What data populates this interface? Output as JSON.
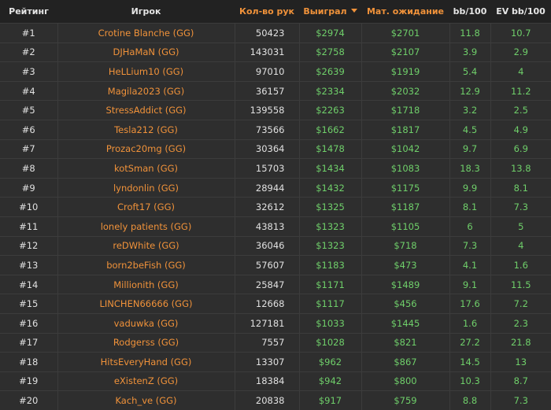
{
  "headers": {
    "rank": "Рейтинг",
    "player": "Игрок",
    "hands": "Кол-во рук",
    "won": "Выиграл",
    "ev": "Мат. ожидание",
    "bb100": "bb/100",
    "evbb100": "EV bb/100"
  },
  "sort": {
    "column": "won",
    "direction": "desc"
  },
  "colors": {
    "accent": "#f0923a",
    "positive": "#6fcf6a",
    "background": "#2e2e2e",
    "header": "#222222"
  },
  "rows": [
    {
      "rank": "#1",
      "player": "Crotine Blanche (GG)",
      "hands": "50423",
      "won": "$2974",
      "ev": "$2701",
      "bb": "11.8",
      "evbb": "10.7"
    },
    {
      "rank": "#2",
      "player": "DJHaMaN (GG)",
      "hands": "143031",
      "won": "$2758",
      "ev": "$2107",
      "bb": "3.9",
      "evbb": "2.9"
    },
    {
      "rank": "#3",
      "player": "HeLLium10 (GG)",
      "hands": "97010",
      "won": "$2639",
      "ev": "$1919",
      "bb": "5.4",
      "evbb": "4"
    },
    {
      "rank": "#4",
      "player": "Magila2023 (GG)",
      "hands": "36157",
      "won": "$2334",
      "ev": "$2032",
      "bb": "12.9",
      "evbb": "11.2"
    },
    {
      "rank": "#5",
      "player": "StressAddict (GG)",
      "hands": "139558",
      "won": "$2263",
      "ev": "$1718",
      "bb": "3.2",
      "evbb": "2.5"
    },
    {
      "rank": "#6",
      "player": "Tesla212 (GG)",
      "hands": "73566",
      "won": "$1662",
      "ev": "$1817",
      "bb": "4.5",
      "evbb": "4.9"
    },
    {
      "rank": "#7",
      "player": "Prozac20mg (GG)",
      "hands": "30364",
      "won": "$1478",
      "ev": "$1042",
      "bb": "9.7",
      "evbb": "6.9"
    },
    {
      "rank": "#8",
      "player": "kotSman (GG)",
      "hands": "15703",
      "won": "$1434",
      "ev": "$1083",
      "bb": "18.3",
      "evbb": "13.8"
    },
    {
      "rank": "#9",
      "player": "lyndonlin (GG)",
      "hands": "28944",
      "won": "$1432",
      "ev": "$1175",
      "bb": "9.9",
      "evbb": "8.1"
    },
    {
      "rank": "#10",
      "player": "Croft17 (GG)",
      "hands": "32612",
      "won": "$1325",
      "ev": "$1187",
      "bb": "8.1",
      "evbb": "7.3"
    },
    {
      "rank": "#11",
      "player": "lonely patients (GG)",
      "hands": "43813",
      "won": "$1323",
      "ev": "$1105",
      "bb": "6",
      "evbb": "5"
    },
    {
      "rank": "#12",
      "player": "reDWhite (GG)",
      "hands": "36046",
      "won": "$1323",
      "ev": "$718",
      "bb": "7.3",
      "evbb": "4"
    },
    {
      "rank": "#13",
      "player": "born2beFish (GG)",
      "hands": "57607",
      "won": "$1183",
      "ev": "$473",
      "bb": "4.1",
      "evbb": "1.6"
    },
    {
      "rank": "#14",
      "player": "Millionith (GG)",
      "hands": "25847",
      "won": "$1171",
      "ev": "$1489",
      "bb": "9.1",
      "evbb": "11.5"
    },
    {
      "rank": "#15",
      "player": "LINCHEN66666 (GG)",
      "hands": "12668",
      "won": "$1117",
      "ev": "$456",
      "bb": "17.6",
      "evbb": "7.2"
    },
    {
      "rank": "#16",
      "player": "vaduwka (GG)",
      "hands": "127181",
      "won": "$1033",
      "ev": "$1445",
      "bb": "1.6",
      "evbb": "2.3"
    },
    {
      "rank": "#17",
      "player": "Rodgerss (GG)",
      "hands": "7557",
      "won": "$1028",
      "ev": "$821",
      "bb": "27.2",
      "evbb": "21.8"
    },
    {
      "rank": "#18",
      "player": "HitsEveryHand (GG)",
      "hands": "13307",
      "won": "$962",
      "ev": "$867",
      "bb": "14.5",
      "evbb": "13"
    },
    {
      "rank": "#19",
      "player": "eXistenZ (GG)",
      "hands": "18384",
      "won": "$942",
      "ev": "$800",
      "bb": "10.3",
      "evbb": "8.7"
    },
    {
      "rank": "#20",
      "player": "Kach_ve (GG)",
      "hands": "20838",
      "won": "$917",
      "ev": "$759",
      "bb": "8.8",
      "evbb": "7.3"
    }
  ]
}
